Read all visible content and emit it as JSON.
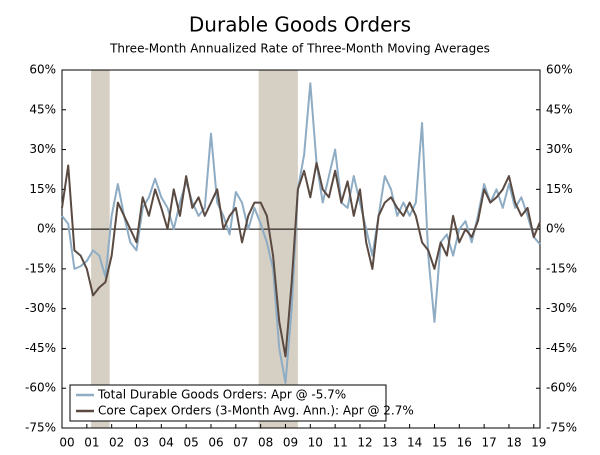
{
  "chart_data": {
    "type": "line",
    "title": "Durable Goods Orders",
    "subtitle": "Three-Month Annualized Rate of Three-Month Moving Averages",
    "x": [
      2000,
      2000.25,
      2000.5,
      2000.75,
      2001,
      2001.25,
      2001.5,
      2001.75,
      2002,
      2002.25,
      2002.5,
      2002.75,
      2003,
      2003.25,
      2003.5,
      2003.75,
      2004,
      2004.25,
      2004.5,
      2004.75,
      2005,
      2005.25,
      2005.5,
      2005.75,
      2006,
      2006.25,
      2006.5,
      2006.75,
      2007,
      2007.25,
      2007.5,
      2007.75,
      2008,
      2008.25,
      2008.5,
      2008.75,
      2009,
      2009.25,
      2009.5,
      2009.75,
      2010,
      2010.25,
      2010.5,
      2010.75,
      2011,
      2011.25,
      2011.5,
      2011.75,
      2012,
      2012.25,
      2012.5,
      2012.75,
      2013,
      2013.25,
      2013.5,
      2013.75,
      2014,
      2014.25,
      2014.5,
      2014.75,
      2015,
      2015.25,
      2015.5,
      2015.75,
      2016,
      2016.25,
      2016.5,
      2016.75,
      2017,
      2017.25,
      2017.5,
      2017.75,
      2018,
      2018.25,
      2018.5,
      2018.75,
      2019,
      2019.25
    ],
    "series": [
      {
        "name": "Total Durable Goods Orders: Apr @ -5.7%",
        "color": "#8eacc4",
        "values": [
          5,
          2,
          -15,
          -14,
          -12,
          -8,
          -10,
          -18,
          5,
          17,
          5,
          -5,
          -8,
          8,
          12,
          19,
          12,
          8,
          0,
          10,
          18,
          10,
          5,
          8,
          36,
          10,
          5,
          -2,
          14,
          10,
          0,
          8,
          2,
          -5,
          -15,
          -45,
          -58,
          -30,
          15,
          28,
          55,
          25,
          10,
          20,
          30,
          10,
          8,
          20,
          10,
          0,
          -10,
          5,
          20,
          15,
          5,
          10,
          5,
          10,
          40,
          -10,
          -35,
          -5,
          -2,
          -10,
          0,
          3,
          -5,
          5,
          17,
          10,
          15,
          8,
          17,
          8,
          12,
          5,
          -3,
          -5.7
        ]
      },
      {
        "name": "Core Capex Orders (3-Month Avg. Ann.): Apr @ 2.7%",
        "color": "#5a4a42",
        "values": [
          8,
          24,
          -8,
          -10,
          -15,
          -25,
          -22,
          -20,
          -10,
          10,
          5,
          0,
          -5,
          12,
          5,
          15,
          8,
          0,
          15,
          5,
          20,
          8,
          12,
          5,
          10,
          15,
          0,
          5,
          8,
          -5,
          5,
          10,
          10,
          5,
          -10,
          -35,
          -48,
          -20,
          15,
          22,
          12,
          25,
          15,
          12,
          22,
          10,
          18,
          5,
          15,
          -5,
          -15,
          5,
          10,
          12,
          8,
          5,
          10,
          5,
          -5,
          -8,
          -15,
          -5,
          -10,
          5,
          -5,
          0,
          -3,
          3,
          15,
          10,
          12,
          15,
          20,
          10,
          5,
          8,
          -3,
          2.7
        ]
      }
    ],
    "recessions": [
      [
        2001.17,
        2001.92
      ],
      [
        2007.92,
        2009.5
      ]
    ],
    "recession_color": "#d6d0c4",
    "xlim": [
      2000,
      2019.25
    ],
    "xticks": [
      {
        "value": 2000,
        "label": "00"
      },
      {
        "value": 2001,
        "label": "01"
      },
      {
        "value": 2002,
        "label": "02"
      },
      {
        "value": 2003,
        "label": "03"
      },
      {
        "value": 2004,
        "label": "04"
      },
      {
        "value": 2005,
        "label": "05"
      },
      {
        "value": 2006,
        "label": "06"
      },
      {
        "value": 2007,
        "label": "07"
      },
      {
        "value": 2008,
        "label": "08"
      },
      {
        "value": 2009,
        "label": "09"
      },
      {
        "value": 2010,
        "label": "10"
      },
      {
        "value": 2011,
        "label": "11"
      },
      {
        "value": 2012,
        "label": "12"
      },
      {
        "value": 2013,
        "label": "13"
      },
      {
        "value": 2014,
        "label": "14"
      },
      {
        "value": 2015,
        "label": "15"
      },
      {
        "value": 2016,
        "label": "16"
      },
      {
        "value": 2017,
        "label": "17"
      },
      {
        "value": 2018,
        "label": "18"
      },
      {
        "value": 2019,
        "label": "19"
      }
    ],
    "ylim": [
      -75,
      60
    ],
    "yticks": [
      {
        "value": 60,
        "label": "60%"
      },
      {
        "value": 45,
        "label": "45%"
      },
      {
        "value": 30,
        "label": "30%"
      },
      {
        "value": 15,
        "label": "15%"
      },
      {
        "value": 0,
        "label": "0%"
      },
      {
        "value": -15,
        "label": "-15%"
      },
      {
        "value": -30,
        "label": "-30%"
      },
      {
        "value": -45,
        "label": "-45%"
      },
      {
        "value": -60,
        "label": "-60%"
      },
      {
        "value": -75,
        "label": "-75%"
      }
    ],
    "y2lim": [
      -75,
      60
    ],
    "y2ticks": [
      {
        "value": 60,
        "label": "60%"
      },
      {
        "value": 45,
        "label": "45%"
      },
      {
        "value": 30,
        "label": "30%"
      },
      {
        "value": 15,
        "label": "15%"
      },
      {
        "value": 0,
        "label": "0%"
      },
      {
        "value": -15,
        "label": "-15%"
      },
      {
        "value": -30,
        "label": "-30%"
      },
      {
        "value": -45,
        "label": "-45%"
      },
      {
        "value": -60,
        "label": "-60%"
      },
      {
        "value": -75,
        "label": "-75%"
      }
    ],
    "legend": "lower left"
  }
}
